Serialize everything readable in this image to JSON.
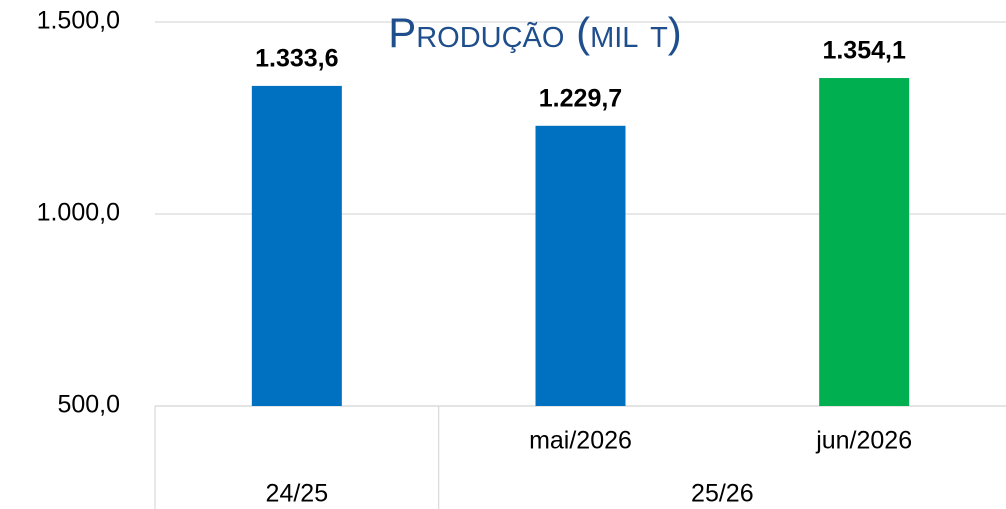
{
  "chart_data": {
    "type": "bar",
    "title": "Produção (mil t)",
    "categories": [
      null,
      "mai/2026",
      "jun/2026"
    ],
    "groups": [
      {
        "name": "24/25",
        "categories": [
          0
        ]
      },
      {
        "name": "25/26",
        "categories": [
          1,
          2
        ]
      }
    ],
    "values": [
      1333.6,
      1229.7,
      1354.1
    ],
    "value_labels": [
      "1.333,6",
      "1.229,7",
      "1.354,1"
    ],
    "colors": [
      "#0070c0",
      "#0070c0",
      "#00b050"
    ],
    "ylim": [
      500,
      1500
    ],
    "yticks": [
      {
        "value": 500,
        "label": "500,0"
      },
      {
        "value": 1000,
        "label": "1.000,0"
      },
      {
        "value": 1500,
        "label": "1.500,0"
      }
    ],
    "grid": true
  }
}
